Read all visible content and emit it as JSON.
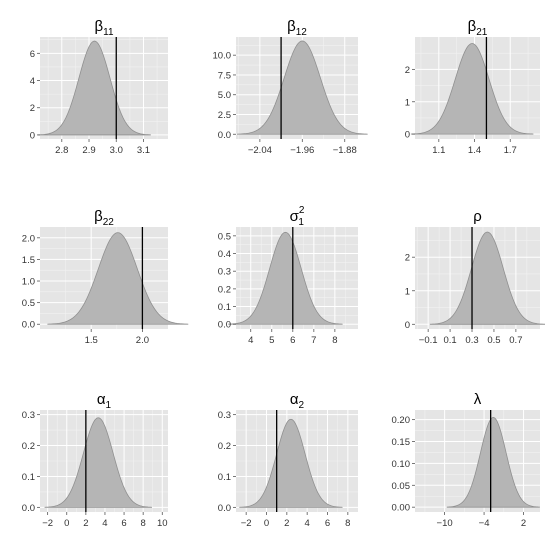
{
  "chart_data": [
    {
      "type": "area",
      "title": "β",
      "title_sub": "11",
      "title_sup": "",
      "xlim": [
        2.72,
        3.19
      ],
      "ylim": [
        -0.3,
        7.2
      ],
      "xticks": [
        2.8,
        2.9,
        3.0,
        3.1
      ],
      "xtick_labels": [
        "2.8",
        "2.9",
        "3.0",
        "3.1"
      ],
      "yticks": [
        0,
        2,
        4,
        6
      ],
      "ytick_labels": [
        "0",
        "2",
        "4",
        "6"
      ],
      "density": {
        "mean": 2.92,
        "sd": 0.057,
        "peak": 6.9
      },
      "reference_line": 3.0
    },
    {
      "type": "area",
      "title": "β",
      "title_sub": "12",
      "title_sup": "",
      "xlim": [
        -2.085,
        -1.855
      ],
      "ylim": [
        -0.6,
        12.3
      ],
      "xticks": [
        -2.04,
        -1.96,
        -1.88
      ],
      "xtick_labels": [
        "−2.04",
        "−1.96",
        "−1.88"
      ],
      "yticks": [
        0.0,
        2.5,
        5.0,
        7.5,
        10.0
      ],
      "ytick_labels": [
        "0.0",
        "2.5",
        "5.0",
        "7.5",
        "10.0"
      ],
      "density": {
        "mean": -1.96,
        "sd": 0.034,
        "peak": 11.8
      },
      "reference_line": -2.0
    },
    {
      "type": "area",
      "title": "β",
      "title_sub": "21",
      "title_sup": "",
      "xlim": [
        0.9,
        1.95
      ],
      "ylim": [
        -0.15,
        3.0
      ],
      "xticks": [
        1.1,
        1.4,
        1.7
      ],
      "xtick_labels": [
        "1.1",
        "1.4",
        "1.7"
      ],
      "yticks": [
        0,
        1,
        2
      ],
      "ytick_labels": [
        "0",
        "1",
        "2"
      ],
      "density": {
        "mean": 1.38,
        "sd": 0.142,
        "peak": 2.8
      },
      "reference_line": 1.5
    },
    {
      "type": "area",
      "title": "β",
      "title_sub": "22",
      "title_sup": "",
      "xlim": [
        1.0,
        2.25
      ],
      "ylim": [
        -0.11,
        2.25
      ],
      "xticks": [
        1.5,
        2.0
      ],
      "xtick_labels": [
        "1.5",
        "2.0"
      ],
      "yticks": [
        0.0,
        0.5,
        1.0,
        1.5,
        2.0
      ],
      "ytick_labels": [
        "0.0",
        "0.5",
        "1.0",
        "1.5",
        "2.0"
      ],
      "density": {
        "mean": 1.76,
        "sd": 0.19,
        "peak": 2.12
      },
      "reference_line": 2.0
    },
    {
      "type": "area",
      "title": "σ",
      "title_sub": "1",
      "title_sup": "2",
      "xlim": [
        3.3,
        9.1
      ],
      "ylim": [
        -0.027,
        0.55
      ],
      "xticks": [
        4,
        5,
        6,
        7,
        8
      ],
      "xtick_labels": [
        "4",
        "5",
        "6",
        "7",
        "8"
      ],
      "yticks": [
        0.0,
        0.1,
        0.2,
        0.3,
        0.4,
        0.5
      ],
      "ytick_labels": [
        "0.0",
        "0.1",
        "0.2",
        "0.3",
        "0.4",
        "0.5"
      ],
      "density": {
        "mean": 5.65,
        "sd": 0.75,
        "peak": 0.52
      },
      "reference_line": 6.0
    },
    {
      "type": "area",
      "title": "ρ",
      "title_sub": "",
      "title_sup": "",
      "xlim": [
        -0.22,
        0.92
      ],
      "ylim": [
        -0.14,
        2.9
      ],
      "xticks": [
        -0.1,
        0.1,
        0.3,
        0.5,
        0.7
      ],
      "xtick_labels": [
        "−0.1",
        "0.1",
        "0.3",
        "0.5",
        "0.7"
      ],
      "yticks": [
        0,
        1,
        2
      ],
      "ytick_labels": [
        "0",
        "1",
        "2"
      ],
      "density": {
        "mean": 0.44,
        "sd": 0.145,
        "peak": 2.75
      },
      "reference_line": 0.3
    },
    {
      "type": "area",
      "title": "α",
      "title_sub": "1",
      "title_sup": "",
      "xlim": [
        -2.8,
        10.6
      ],
      "ylim": [
        -0.015,
        0.315
      ],
      "xticks": [
        -2,
        0,
        2,
        4,
        6,
        8,
        10
      ],
      "xtick_labels": [
        "−2",
        "0",
        "2",
        "4",
        "6",
        "8",
        "10"
      ],
      "yticks": [
        0.0,
        0.1,
        0.2,
        0.3
      ],
      "ytick_labels": [
        "0.0",
        "0.1",
        "0.2",
        "0.3"
      ],
      "density": {
        "mean": 3.3,
        "sd": 1.55,
        "peak": 0.29
      },
      "reference_line": 2.0
    },
    {
      "type": "area",
      "title": "α",
      "title_sub": "2",
      "title_sup": "",
      "xlim": [
        -3.0,
        9.0
      ],
      "ylim": [
        -0.015,
        0.315
      ],
      "xticks": [
        -2,
        0,
        2,
        4,
        6,
        8
      ],
      "xtick_labels": [
        "−2",
        "0",
        "2",
        "4",
        "6",
        "8"
      ],
      "yticks": [
        0.0,
        0.1,
        0.2,
        0.3
      ],
      "ytick_labels": [
        "0.0",
        "0.1",
        "0.2",
        "0.3"
      ],
      "density": {
        "mean": 2.4,
        "sd": 1.4,
        "peak": 0.285
      },
      "reference_line": 1.0
    },
    {
      "type": "area",
      "title": "λ",
      "title_sub": "",
      "title_sup": "",
      "xlim": [
        -14.5,
        4.5
      ],
      "ylim": [
        -0.011,
        0.222
      ],
      "xticks": [
        -10,
        -4,
        2
      ],
      "xtick_labels": [
        "−10",
        "−4",
        "2"
      ],
      "yticks": [
        0.0,
        0.05,
        0.1,
        0.15,
        0.2
      ],
      "ytick_labels": [
        "0.00",
        "0.05",
        "0.10",
        "0.15",
        "0.20"
      ],
      "density": {
        "mean": -2.6,
        "sd": 1.95,
        "peak": 0.205
      },
      "reference_line": -3.0
    }
  ]
}
